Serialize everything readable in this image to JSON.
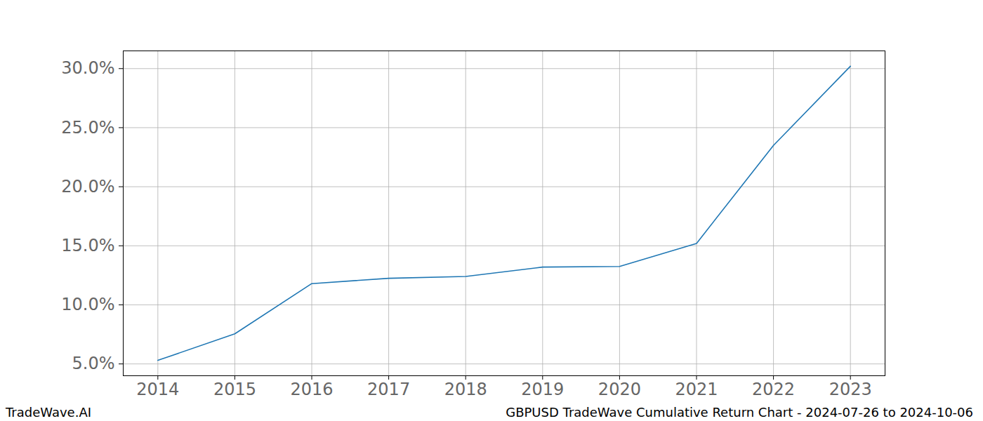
{
  "chart_data": {
    "type": "line",
    "title": "GBPUSD TradeWave Cumulative Return Chart - 2024-07-26 to 2024-10-06",
    "source": "TradeWave.AI",
    "x": [
      2014,
      2015,
      2016,
      2017,
      2018,
      2019,
      2020,
      2021,
      2022,
      2023
    ],
    "values": [
      5.3,
      7.55,
      11.8,
      12.25,
      12.4,
      13.2,
      13.25,
      15.2,
      23.5,
      30.2
    ],
    "color": "#1f77b4",
    "xlim": [
      2013.55,
      2023.45
    ],
    "xticks": [
      2014,
      2015,
      2016,
      2017,
      2018,
      2019,
      2020,
      2021,
      2022,
      2023
    ],
    "ylim": [
      4.0,
      31.5
    ],
    "yticks": [
      {
        "value": 5,
        "label": "5.0%"
      },
      {
        "value": 10,
        "label": "10.0%"
      },
      {
        "value": 15,
        "label": "15.0%"
      },
      {
        "value": 20,
        "label": "20.0%"
      },
      {
        "value": 25,
        "label": "25.0%"
      },
      {
        "value": 30,
        "label": "30.0%"
      }
    ],
    "grid": true
  }
}
